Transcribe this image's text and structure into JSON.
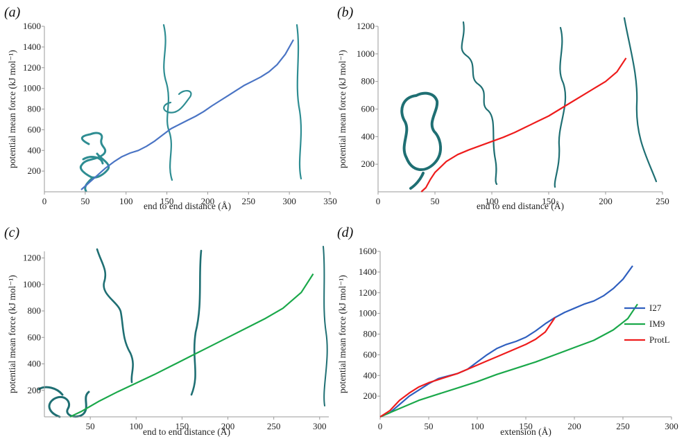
{
  "chart_data": [
    {
      "panel": "(a)",
      "type": "line",
      "xlabel": "end to end distance (Å)",
      "ylabel": "potential mean force (kJ mol⁻¹)",
      "xlim": [
        0,
        350
      ],
      "ylim": [
        0,
        1600
      ],
      "xticks": [
        0,
        50,
        100,
        150,
        200,
        250,
        300,
        350
      ],
      "yticks": [
        200,
        400,
        600,
        800,
        1000,
        1200,
        1400,
        1600
      ],
      "series": [
        {
          "color": "#4a74c4",
          "x": [
            45,
            55,
            65,
            75,
            85,
            95,
            105,
            115,
            125,
            135,
            145,
            155,
            165,
            175,
            185,
            195,
            205,
            215,
            225,
            235,
            245,
            255,
            265,
            275,
            285,
            295,
            305
          ],
          "y": [
            20,
            90,
            160,
            230,
            290,
            340,
            375,
            400,
            440,
            490,
            550,
            610,
            650,
            690,
            730,
            775,
            830,
            880,
            930,
            980,
            1030,
            1070,
            1110,
            1160,
            1230,
            1330,
            1470
          ]
        }
      ]
    },
    {
      "panel": "(b)",
      "type": "line",
      "xlabel": "end to end distance (Å)",
      "ylabel": "potential mean force (kJ mol⁻¹)",
      "xlim": [
        0,
        250
      ],
      "ylim": [
        0,
        1200
      ],
      "xticks": [
        0,
        50,
        100,
        150,
        200,
        250
      ],
      "yticks": [
        200,
        400,
        600,
        800,
        1000,
        1200
      ],
      "series": [
        {
          "color": "#ee1c1c",
          "x": [
            38,
            42,
            46,
            50,
            55,
            60,
            70,
            80,
            90,
            100,
            110,
            120,
            130,
            140,
            150,
            160,
            170,
            180,
            190,
            200,
            210,
            218
          ],
          "y": [
            0,
            30,
            90,
            140,
            180,
            220,
            270,
            305,
            335,
            365,
            395,
            430,
            470,
            510,
            550,
            600,
            650,
            700,
            750,
            800,
            870,
            970
          ]
        }
      ]
    },
    {
      "panel": "(c)",
      "type": "line",
      "xlabel": "end to end distance (Å)",
      "ylabel": "potential mean force (kJ mol⁻¹)",
      "xlim": [
        0,
        310
      ],
      "ylim": [
        0,
        1250
      ],
      "xticks": [
        50,
        100,
        150,
        200,
        250,
        300
      ],
      "yticks": [
        200,
        400,
        600,
        800,
        1000,
        1200
      ],
      "series": [
        {
          "color": "#1aa84a",
          "x": [
            28,
            40,
            60,
            80,
            100,
            120,
            140,
            160,
            180,
            200,
            220,
            240,
            260,
            280,
            293
          ],
          "y": [
            0,
            40,
            120,
            190,
            255,
            320,
            390,
            460,
            530,
            600,
            670,
            740,
            820,
            940,
            1080
          ]
        }
      ]
    },
    {
      "panel": "(d)",
      "type": "line",
      "xlabel": "extension (Å)",
      "ylabel": "potential mean force (kJ mol⁻¹)",
      "xlim": [
        0,
        300
      ],
      "ylim": [
        0,
        1600
      ],
      "xticks": [
        0,
        50,
        100,
        150,
        200,
        250,
        300
      ],
      "yticks": [
        200,
        400,
        600,
        800,
        1000,
        1200,
        1400,
        1600
      ],
      "legend": "right",
      "series": [
        {
          "name": "I27",
          "color": "#2f5fbf",
          "x": [
            0,
            10,
            20,
            30,
            40,
            50,
            60,
            70,
            80,
            90,
            100,
            110,
            120,
            130,
            140,
            150,
            160,
            170,
            180,
            190,
            200,
            210,
            220,
            230,
            240,
            250,
            260
          ],
          "y": [
            0,
            40,
            120,
            200,
            260,
            320,
            370,
            395,
            420,
            460,
            530,
            600,
            660,
            700,
            730,
            770,
            830,
            900,
            960,
            1010,
            1050,
            1090,
            1120,
            1170,
            1240,
            1330,
            1460
          ]
        },
        {
          "name": "IM9",
          "color": "#1aa84a",
          "x": [
            0,
            20,
            40,
            60,
            80,
            100,
            120,
            140,
            160,
            180,
            200,
            220,
            240,
            255,
            265
          ],
          "y": [
            0,
            80,
            160,
            220,
            280,
            340,
            410,
            470,
            530,
            600,
            670,
            740,
            840,
            950,
            1090
          ]
        },
        {
          "name": "ProtL",
          "color": "#ee1c1c",
          "x": [
            0,
            10,
            20,
            30,
            40,
            50,
            60,
            70,
            80,
            90,
            100,
            110,
            120,
            130,
            140,
            150,
            160,
            170,
            180
          ],
          "y": [
            0,
            60,
            160,
            230,
            290,
            330,
            360,
            390,
            420,
            460,
            500,
            540,
            580,
            620,
            660,
            700,
            750,
            820,
            960
          ]
        }
      ]
    }
  ]
}
